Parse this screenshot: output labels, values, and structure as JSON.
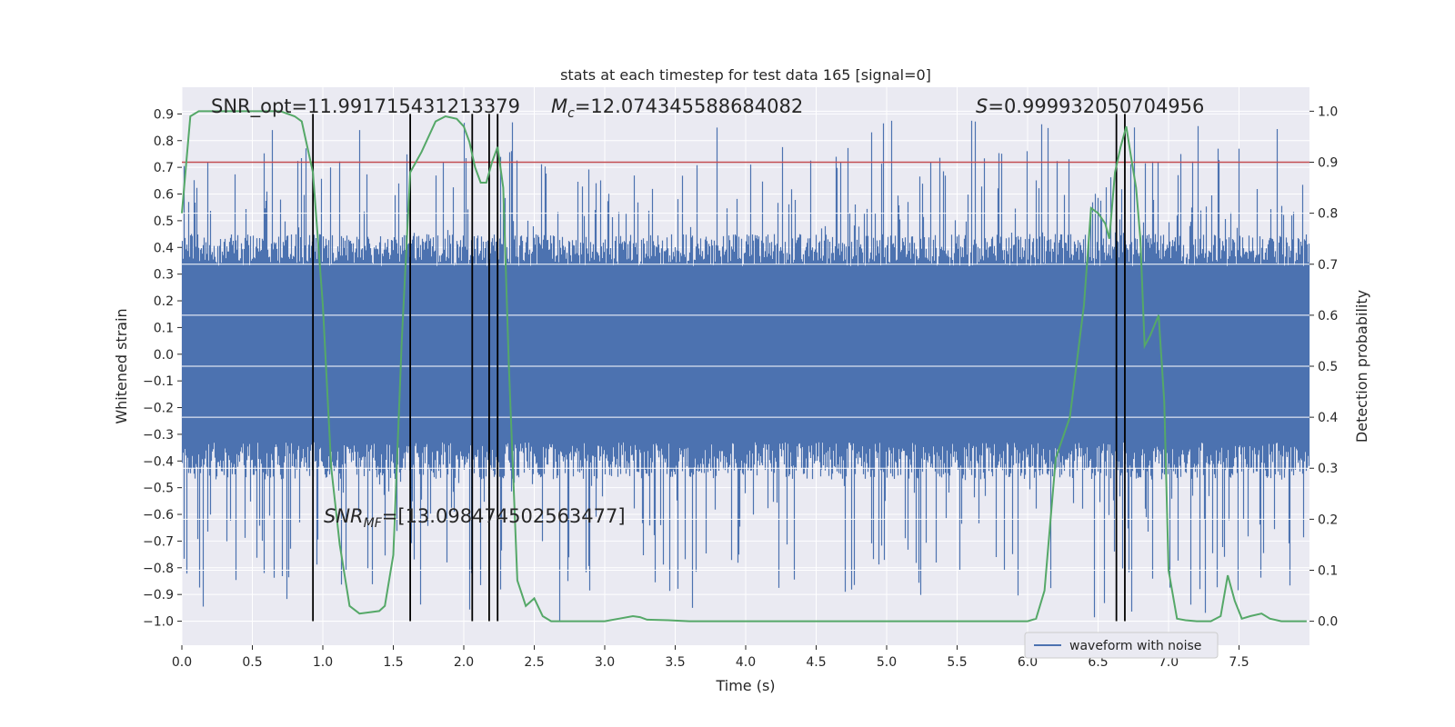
{
  "chart_data": {
    "type": "line",
    "title": "stats at each timestep for test data 165 [signal=0]",
    "xlabel": "Time (s)",
    "ylabel_left": "Whitened strain",
    "ylabel_right": "Detection probability",
    "xlim": [
      0.0,
      8.0
    ],
    "ylim_left": [
      -1.09,
      1.0
    ],
    "ylim_right": [
      -0.047,
      1.047
    ],
    "x_ticks": [
      "0.0",
      "0.5",
      "1.0",
      "1.5",
      "2.0",
      "2.5",
      "3.0",
      "3.5",
      "4.0",
      "4.5",
      "5.0",
      "5.5",
      "6.0",
      "6.5",
      "7.0",
      "7.5"
    ],
    "y_left_ticks": [
      "0.9",
      "0.8",
      "0.7",
      "0.6",
      "0.5",
      "0.4",
      "0.3",
      "0.2",
      "0.1",
      "0.0",
      "−0.1",
      "−0.2",
      "−0.3",
      "−0.4",
      "−0.5",
      "−0.6",
      "−0.7",
      "−0.8",
      "−0.9",
      "−1.0"
    ],
    "y_right_ticks": [
      "1.0",
      "0.9",
      "0.8",
      "0.7",
      "0.6",
      "0.5",
      "0.4",
      "0.3",
      "0.2",
      "0.1",
      "0.0"
    ],
    "grid": true,
    "threshold": {
      "axis": "right",
      "value": 0.9,
      "color": "#c44e52"
    },
    "vertical_markers": [
      0.93,
      1.62,
      2.06,
      2.18,
      2.24,
      6.63,
      6.69
    ],
    "vertical_marker_range": [
      -1.0,
      0.9
    ],
    "annotations": {
      "snr_opt": "SNR_opt=11.991715431213379",
      "mc": "=12.074345588684082",
      "mc_symbol": "M",
      "mc_sub": "c",
      "s": "=0.999932050704956",
      "s_symbol": "S",
      "snr_mf": "=[13.098474502563477]",
      "snr_mf_symbol": "SNR",
      "snr_mf_sub": "MF"
    },
    "legend": {
      "placement": "lower-right",
      "entries": [
        "waveform with noise"
      ]
    },
    "series": [
      {
        "name": "waveform with noise",
        "axis": "left",
        "color": "#4c72b0",
        "kind": "noise-envelope",
        "core_amplitude": 0.33,
        "spike_max": 0.88,
        "spike_min": -1.0
      },
      {
        "name": "detection probability",
        "axis": "right",
        "color": "#55a868",
        "x": [
          0.0,
          0.06,
          0.12,
          0.2,
          0.3,
          0.5,
          0.7,
          0.8,
          0.85,
          0.93,
          1.0,
          1.06,
          1.12,
          1.19,
          1.26,
          1.4,
          1.44,
          1.5,
          1.56,
          1.62,
          1.7,
          1.8,
          1.87,
          1.95,
          2.0,
          2.04,
          2.08,
          2.12,
          2.16,
          2.2,
          2.24,
          2.28,
          2.32,
          2.38,
          2.44,
          2.5,
          2.56,
          2.62,
          2.7,
          2.8,
          3.0,
          3.1,
          3.2,
          3.25,
          3.3,
          3.45,
          3.6,
          3.7,
          3.8,
          4.0,
          4.5,
          5.0,
          5.5,
          5.8,
          6.0,
          6.06,
          6.12,
          6.2,
          6.3,
          6.4,
          6.45,
          6.5,
          6.55,
          6.58,
          6.62,
          6.66,
          6.7,
          6.74,
          6.77,
          6.8,
          6.83,
          6.87,
          6.93,
          6.97,
          7.0,
          7.06,
          7.12,
          7.2,
          7.3,
          7.37,
          7.42,
          7.47,
          7.52,
          7.58,
          7.66,
          7.72,
          7.8,
          7.9,
          7.98
        ],
        "y": [
          0.8,
          0.99,
          1.0,
          1.0,
          1.0,
          1.0,
          1.0,
          0.99,
          0.98,
          0.88,
          0.62,
          0.3,
          0.15,
          0.03,
          0.015,
          0.02,
          0.03,
          0.13,
          0.55,
          0.88,
          0.92,
          0.98,
          0.99,
          0.985,
          0.97,
          0.94,
          0.89,
          0.86,
          0.86,
          0.9,
          0.93,
          0.85,
          0.5,
          0.08,
          0.03,
          0.045,
          0.01,
          0.0,
          0.0,
          0.0,
          0.0,
          0.005,
          0.01,
          0.008,
          0.003,
          0.002,
          0.0,
          0.0,
          0.0,
          0.0,
          0.0,
          0.0,
          0.0,
          0.0,
          0.0,
          0.005,
          0.06,
          0.32,
          0.4,
          0.62,
          0.81,
          0.8,
          0.78,
          0.75,
          0.88,
          0.93,
          0.97,
          0.9,
          0.85,
          0.75,
          0.54,
          0.56,
          0.6,
          0.43,
          0.1,
          0.005,
          0.002,
          0.0,
          0.0,
          0.01,
          0.09,
          0.04,
          0.005,
          0.01,
          0.015,
          0.005,
          0.0,
          0.0,
          0.0
        ]
      }
    ]
  }
}
